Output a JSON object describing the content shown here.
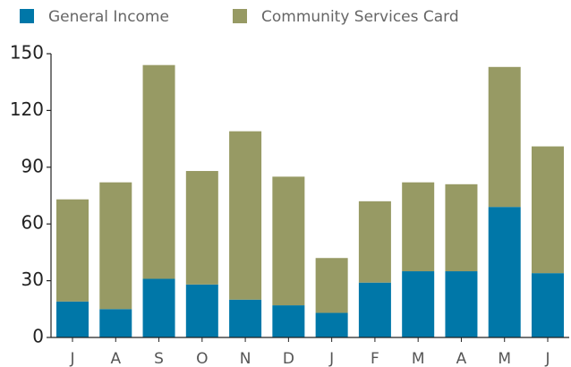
{
  "chart_data": {
    "type": "stacked_bar",
    "categories": [
      "J",
      "A",
      "S",
      "O",
      "N",
      "D",
      "J",
      "F",
      "M",
      "A",
      "M",
      "J"
    ],
    "series": [
      {
        "name": "General Income",
        "color": "#0077a8",
        "values": [
          19,
          15,
          31,
          28,
          20,
          17,
          13,
          29,
          35,
          35,
          69,
          34
        ]
      },
      {
        "name": "Community Services Card",
        "color": "#979a64",
        "values": [
          54,
          67,
          113,
          60,
          89,
          68,
          29,
          43,
          47,
          46,
          74,
          67
        ]
      }
    ],
    "ylim": [
      0,
      150
    ],
    "yticks": [
      0,
      30,
      60,
      90,
      120,
      150
    ],
    "legend": "top"
  }
}
